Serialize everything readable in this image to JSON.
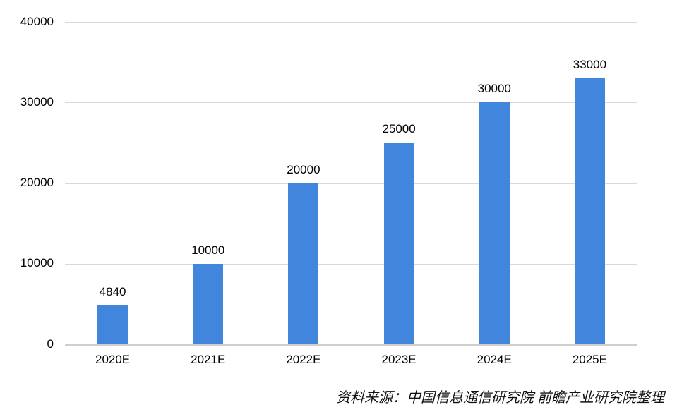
{
  "chart_data": {
    "type": "bar",
    "categories": [
      "2020E",
      "2021E",
      "2022E",
      "2023E",
      "2024E",
      "2025E"
    ],
    "values": [
      4840,
      10000,
      20000,
      25000,
      30000,
      33000
    ],
    "data_labels": [
      "4840",
      "10000",
      "20000",
      "25000",
      "30000",
      "33000"
    ],
    "title": "",
    "xlabel": "",
    "ylabel": "",
    "ylim": [
      0,
      40000
    ],
    "yticks": [
      0,
      10000,
      20000,
      30000,
      40000
    ],
    "ytick_labels": [
      "0",
      "10000",
      "20000",
      "30000",
      "40000"
    ],
    "grid": true,
    "legend": false,
    "legend_position": "none",
    "bar_color": "#4186dc"
  },
  "source_note": "资料来源：中国信息通信研究院 前瞻产业研究院整理",
  "colors": {
    "bar": "#4186dc",
    "gridline": "#d9d9d9",
    "axis_line": "#cfcfcf",
    "label_text": "#000000",
    "background": "#ffffff"
  }
}
